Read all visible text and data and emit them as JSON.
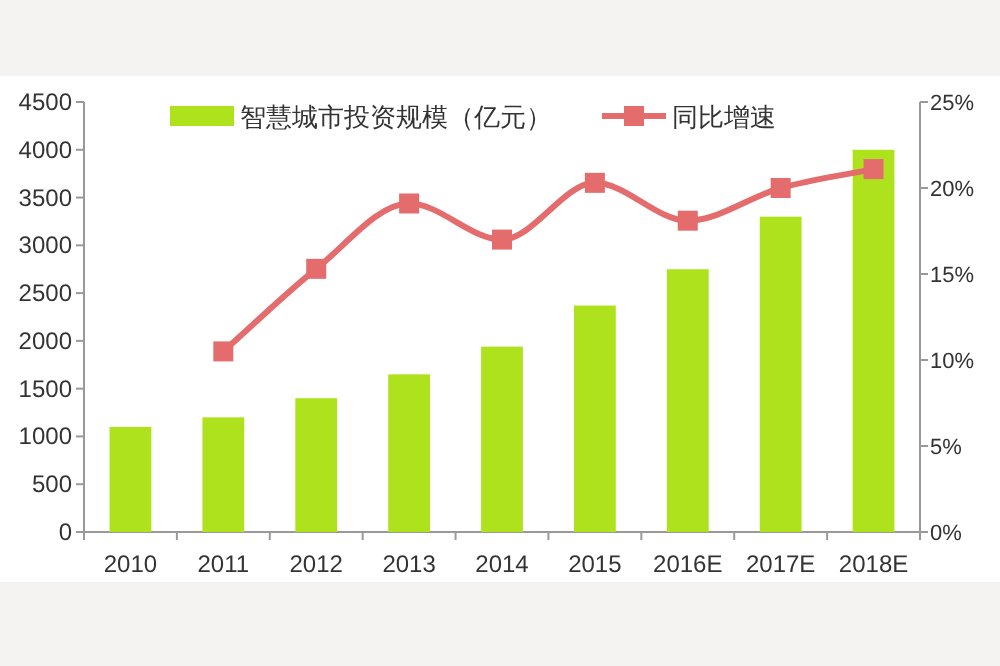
{
  "chart_data": {
    "type": "bar",
    "categories": [
      "2010",
      "2011",
      "2012",
      "2013",
      "2014",
      "2015",
      "2016E",
      "2017E",
      "2018E"
    ],
    "series": [
      {
        "name": "智慧城市投资规模（亿元）",
        "color": "#aee21c",
        "values": [
          1100,
          1200,
          1400,
          1650,
          1940,
          2370,
          2750,
          3300,
          4000
        ]
      },
      {
        "name": "同比增速",
        "type": "line",
        "axis": "y2",
        "color": "#e46c6c",
        "marker": "square",
        "values": [
          null,
          10.5,
          15.3,
          19.1,
          17.0,
          20.3,
          18.1,
          20.0,
          21.1
        ]
      }
    ],
    "ylim": [
      0,
      4500
    ],
    "yticks": [
      0,
      500,
      1000,
      1500,
      2000,
      2500,
      3000,
      3500,
      4000,
      4500
    ],
    "y2lim": [
      0,
      25
    ],
    "y2ticks": [
      {
        "value": 0,
        "label": "0%"
      },
      {
        "value": 5,
        "label": "5%"
      },
      {
        "value": 10,
        "label": "10%"
      },
      {
        "value": 15,
        "label": "15%"
      },
      {
        "value": 20,
        "label": "20%"
      },
      {
        "value": 25,
        "label": "25%"
      }
    ],
    "legend": "top",
    "grid": false
  }
}
